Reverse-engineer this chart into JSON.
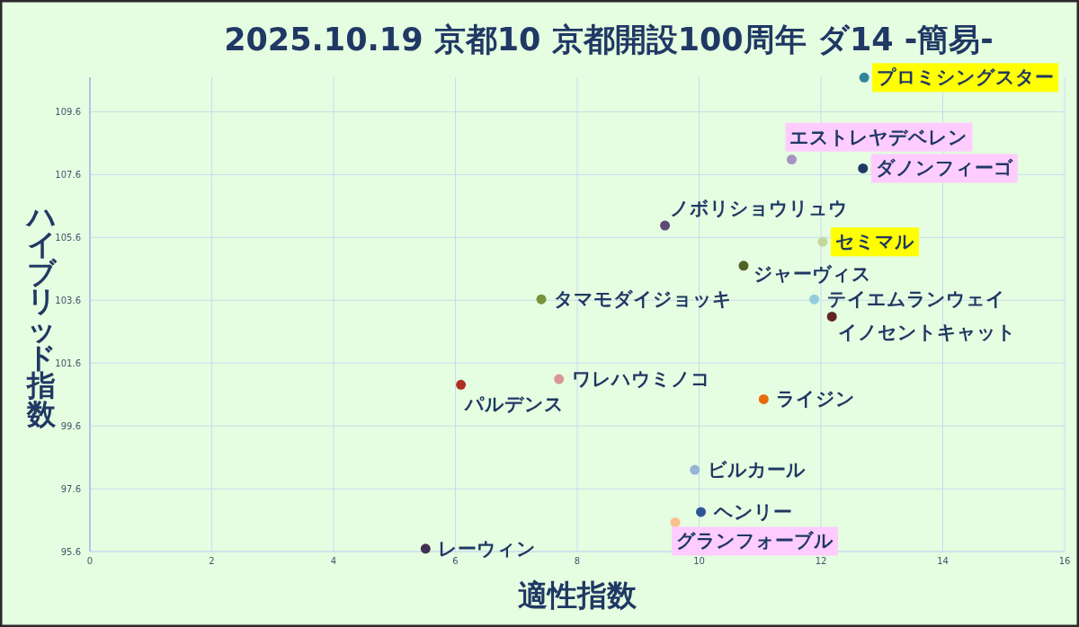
{
  "chart_data": {
    "type": "scatter",
    "title": "2025.10.19 京都10 京都開設100周年 ダ14 -簡易-",
    "xlabel": "適性指数",
    "ylabel": "ハイブリッド指数",
    "xlim": [
      0,
      16
    ],
    "xticks": [
      0,
      2,
      4,
      6,
      8,
      10,
      12,
      14,
      16
    ],
    "ylim": [
      95.6,
      110.7
    ],
    "yticks": [
      95.6,
      97.6,
      99.6,
      101.6,
      103.6,
      105.6,
      107.6,
      109.6
    ],
    "grid": true,
    "marker": "circle",
    "series": [
      {
        "name": "プロミシングスター",
        "color": "#31859c",
        "x": [
          12.71
        ],
        "values": [
          110.69
        ]
      },
      {
        "name": "エストレヤデベレン",
        "color": "#a893c6",
        "x": [
          11.52
        ],
        "values": [
          108.08
        ]
      },
      {
        "name": "ダノンフィーゴ",
        "color": "#1f3864",
        "x": [
          12.69
        ],
        "values": [
          107.8
        ]
      },
      {
        "name": "ノボリショウリュウ",
        "color": "#60497a",
        "x": [
          9.44
        ],
        "values": [
          105.98
        ]
      },
      {
        "name": "セミマル",
        "color": "#c4d79b",
        "x": [
          12.03
        ],
        "values": [
          105.46
        ]
      },
      {
        "name": "ジャーヴィス",
        "color": "#4f6228",
        "x": [
          10.73
        ],
        "values": [
          104.7
        ]
      },
      {
        "name": "タマモダイジョッキ",
        "color": "#77933c",
        "x": [
          7.41
        ],
        "values": [
          103.63
        ]
      },
      {
        "name": "テイエムランウェイ",
        "color": "#93cddd",
        "x": [
          11.89
        ],
        "values": [
          103.63
        ]
      },
      {
        "name": "イノセントキャット",
        "color": "#632523",
        "x": [
          12.18
        ],
        "values": [
          103.08
        ]
      },
      {
        "name": "ワレハウミノコ",
        "color": "#d99694",
        "x": [
          7.7
        ],
        "values": [
          101.09
        ]
      },
      {
        "name": "パルデンス",
        "color": "#b03024",
        "x": [
          6.09
        ],
        "values": [
          100.91
        ]
      },
      {
        "name": "ライジン",
        "color": "#e46c0a",
        "x": [
          11.06
        ],
        "values": [
          100.45
        ]
      },
      {
        "name": "ビルカール",
        "color": "#95b3d7",
        "x": [
          9.93
        ],
        "values": [
          98.2
        ]
      },
      {
        "name": "ヘンリー",
        "color": "#2f5597",
        "x": [
          10.03
        ],
        "values": [
          96.86
        ]
      },
      {
        "name": "グランフォーブル",
        "color": "#fabf8f",
        "x": [
          9.61
        ],
        "values": [
          96.53
        ]
      },
      {
        "name": "レーウィン",
        "color": "#3f3151",
        "x": [
          5.51
        ],
        "values": [
          95.69
        ]
      }
    ]
  }
}
